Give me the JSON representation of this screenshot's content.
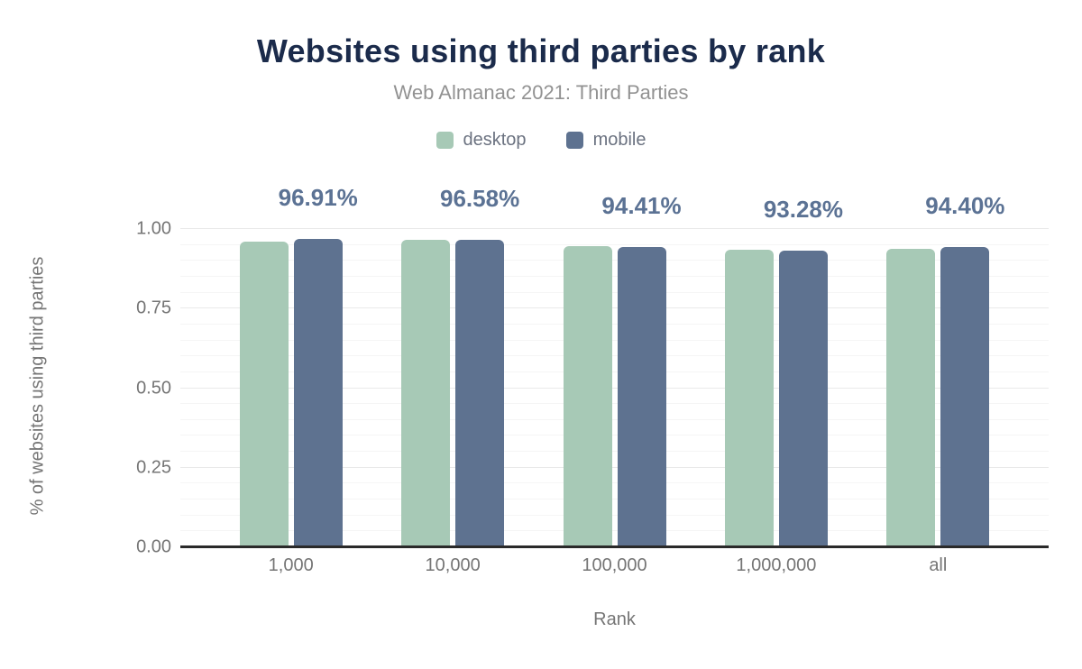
{
  "chart_data": {
    "type": "bar",
    "title": "Websites using third parties by rank",
    "subtitle": "Web Almanac 2021: Third Parties",
    "xlabel": "Rank",
    "ylabel": "% of websites using third parties",
    "categories": [
      "1,000",
      "10,000",
      "100,000",
      "1,000,000",
      "all"
    ],
    "series": [
      {
        "name": "desktop",
        "color": "#a7c9b6",
        "values": [
          0.961,
          0.967,
          0.947,
          0.936,
          0.937
        ]
      },
      {
        "name": "mobile",
        "color": "#5e7290",
        "values": [
          0.9691,
          0.9658,
          0.9441,
          0.9328,
          0.944
        ]
      }
    ],
    "bar_labels": [
      "96.91%",
      "96.58%",
      "94.41%",
      "93.28%",
      "94.40%"
    ],
    "bar_label_series": "mobile",
    "yticks": [
      "0.00",
      "0.25",
      "0.50",
      "0.75",
      "1.00"
    ],
    "ylim": [
      0,
      1
    ],
    "grid": {
      "minor_step": 0.05,
      "major_step": 0.25,
      "visible": true
    },
    "legend_position": "top",
    "colors": {
      "title": "#1b2b4b",
      "subtitle": "#929292",
      "axis_text": "#757575",
      "legend_text": "#6b7280",
      "bar_label": "#5b7294",
      "axis_line": "#2a2a2a",
      "background": "#ffffff"
    }
  }
}
